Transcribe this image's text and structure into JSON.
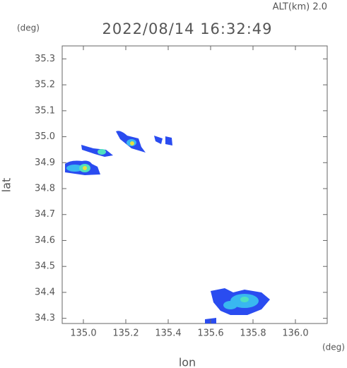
{
  "chart_data": {
    "type": "map",
    "title": "2022/08/14 16:32:49",
    "subtitle": "ALT(km)  2.0",
    "y_unit": "(deg)",
    "x_unit": "(deg)",
    "x_label": "lon",
    "y_label": "lat",
    "xlim": [
      134.9,
      136.15
    ],
    "ylim": [
      34.28,
      35.35
    ],
    "xticks": [
      {
        "value": 135,
        "label": "135.0"
      },
      135.2,
      135.4,
      135.6,
      135.8,
      {
        "value": 136,
        "label": "136.0"
      }
    ],
    "yticks": [
      34.3,
      34.4,
      34.5,
      34.6,
      34.7,
      34.8,
      34.9,
      {
        "value": 35,
        "label": "35.0"
      },
      35.1,
      35.2,
      35.3
    ]
  }
}
